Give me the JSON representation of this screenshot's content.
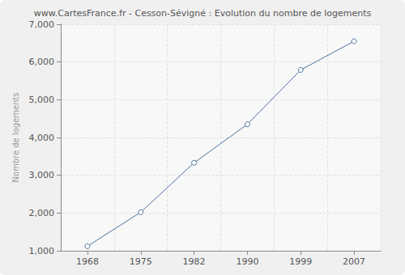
{
  "chart_data": {
    "type": "line",
    "title": "www.CartesFrance.fr - Cesson-Sévigné : Evolution du nombre de logements",
    "y_label": "Nombre de logements",
    "categories": [
      "1968",
      "1975",
      "1982",
      "1990",
      "1999",
      "2007"
    ],
    "values": [
      1120,
      2020,
      3330,
      4350,
      5790,
      6550
    ],
    "color": "#4a72a0",
    "marker": "circle",
    "ylim": [
      1000,
      7000
    ],
    "yticks": [
      1000,
      2000,
      3000,
      4000,
      5000,
      6000,
      7000
    ],
    "grid": true
  }
}
